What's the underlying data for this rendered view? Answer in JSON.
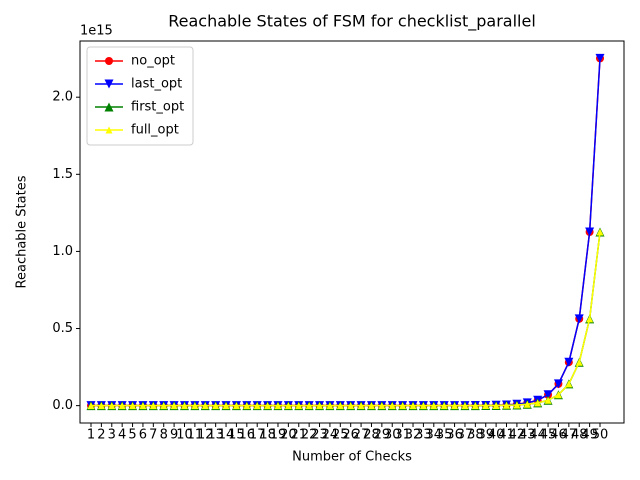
{
  "chart_data": {
    "type": "line",
    "title": "Reachable States of FSM for checklist_parallel",
    "x_label": "Number of Checks",
    "y_label": "Reachable States",
    "y_offset_label": "1e15",
    "categories": [
      1,
      2,
      3,
      4,
      5,
      6,
      7,
      8,
      9,
      10,
      11,
      12,
      13,
      14,
      15,
      16,
      17,
      18,
      19,
      20,
      21,
      22,
      23,
      24,
      25,
      26,
      27,
      28,
      29,
      30,
      31,
      32,
      33,
      34,
      35,
      36,
      37,
      38,
      39,
      40,
      41,
      42,
      43,
      44,
      45,
      46,
      47,
      48,
      49,
      50
    ],
    "series": [
      {
        "name": "no_opt",
        "color": "#ff0000",
        "marker": "circle",
        "values": [
          4,
          8,
          16,
          32,
          64,
          128,
          256,
          512,
          1024,
          2048,
          4096,
          8192,
          16384,
          32768,
          65536,
          131072,
          262144,
          524288,
          1048576,
          2097152,
          4194304,
          8388608,
          16777216,
          33554432,
          67108864,
          134217728,
          268435456,
          536870912,
          1073741824,
          2147483648,
          4294967296,
          8589934592,
          17179869184,
          34359738368,
          68719476736,
          137438953472,
          274877906944,
          549755813888,
          1099511627776,
          2199023255552,
          4398046511104,
          8796093022208,
          17592186044416,
          35184372088832,
          70368744177664,
          140737488355328,
          281474976710656,
          562949953421312,
          1125899906842624,
          2251799813685248
        ]
      },
      {
        "name": "last_opt",
        "color": "#0000ff",
        "marker": "triangle-down",
        "values": [
          4,
          8,
          16,
          32,
          64,
          128,
          256,
          512,
          1024,
          2048,
          4096,
          8192,
          16384,
          32768,
          65536,
          131072,
          262144,
          524288,
          1048576,
          2097152,
          4194304,
          8388608,
          16777216,
          33554432,
          67108864,
          134217728,
          268435456,
          536870912,
          1073741824,
          2147483648,
          4294967296,
          8589934592,
          17179869184,
          34359738368,
          68719476736,
          137438953472,
          274877906944,
          549755813888,
          1099511627776,
          2199023255552,
          4398046511104,
          8796093022208,
          17592186044416,
          35184372088832,
          70368744177664,
          140737488355328,
          281474976710656,
          562949953421312,
          1125899906842624,
          2251799813685248
        ]
      },
      {
        "name": "first_opt",
        "color": "#008000",
        "marker": "triangle-up",
        "values": [
          2,
          4,
          8,
          16,
          32,
          64,
          128,
          256,
          512,
          1024,
          2048,
          4096,
          8192,
          16384,
          32768,
          65536,
          131072,
          262144,
          524288,
          1048576,
          2097152,
          4194304,
          8388608,
          16777216,
          33554432,
          67108864,
          134217728,
          268435456,
          536870912,
          1073741824,
          2147483648,
          4294967296,
          8589934592,
          17179869184,
          34359738368,
          68719476736,
          137438953472,
          274877906944,
          549755813888,
          1099511627776,
          2199023255552,
          4398046511104,
          8796093022208,
          17592186044416,
          35184372088832,
          70368744177664,
          140737488355328,
          281474976710656,
          562949953421312,
          1125899906842624
        ]
      },
      {
        "name": "full_opt",
        "color": "#ffff00",
        "marker": "triangle-up-small",
        "values": [
          2,
          4,
          8,
          16,
          32,
          64,
          128,
          256,
          512,
          1024,
          2048,
          4096,
          8192,
          16384,
          32768,
          65536,
          131072,
          262144,
          524288,
          1048576,
          2097152,
          4194304,
          8388608,
          16777216,
          33554432,
          67108864,
          134217728,
          268435456,
          536870912,
          1073741824,
          2147483648,
          4294967296,
          8589934592,
          17179869184,
          34359738368,
          68719476736,
          137438953472,
          274877906944,
          549755813888,
          1099511627776,
          2199023255552,
          4398046511104,
          8796093022208,
          17592186044416,
          35184372088832,
          70368744177664,
          140737488355328,
          281474976710656,
          562949953421312,
          1125899906842624
        ]
      }
    ],
    "ylim": [
      -112589990684262,
      2364389804369510
    ],
    "yticks": [
      {
        "value": 0,
        "label": "0.0"
      },
      {
        "value": 500000000000000,
        "label": "0.5"
      },
      {
        "value": 1000000000000000,
        "label": "1.0"
      },
      {
        "value": 1500000000000000,
        "label": "1.5"
      },
      {
        "value": 2000000000000000,
        "label": "2.0"
      }
    ],
    "legend": "upper left",
    "grid": false
  }
}
